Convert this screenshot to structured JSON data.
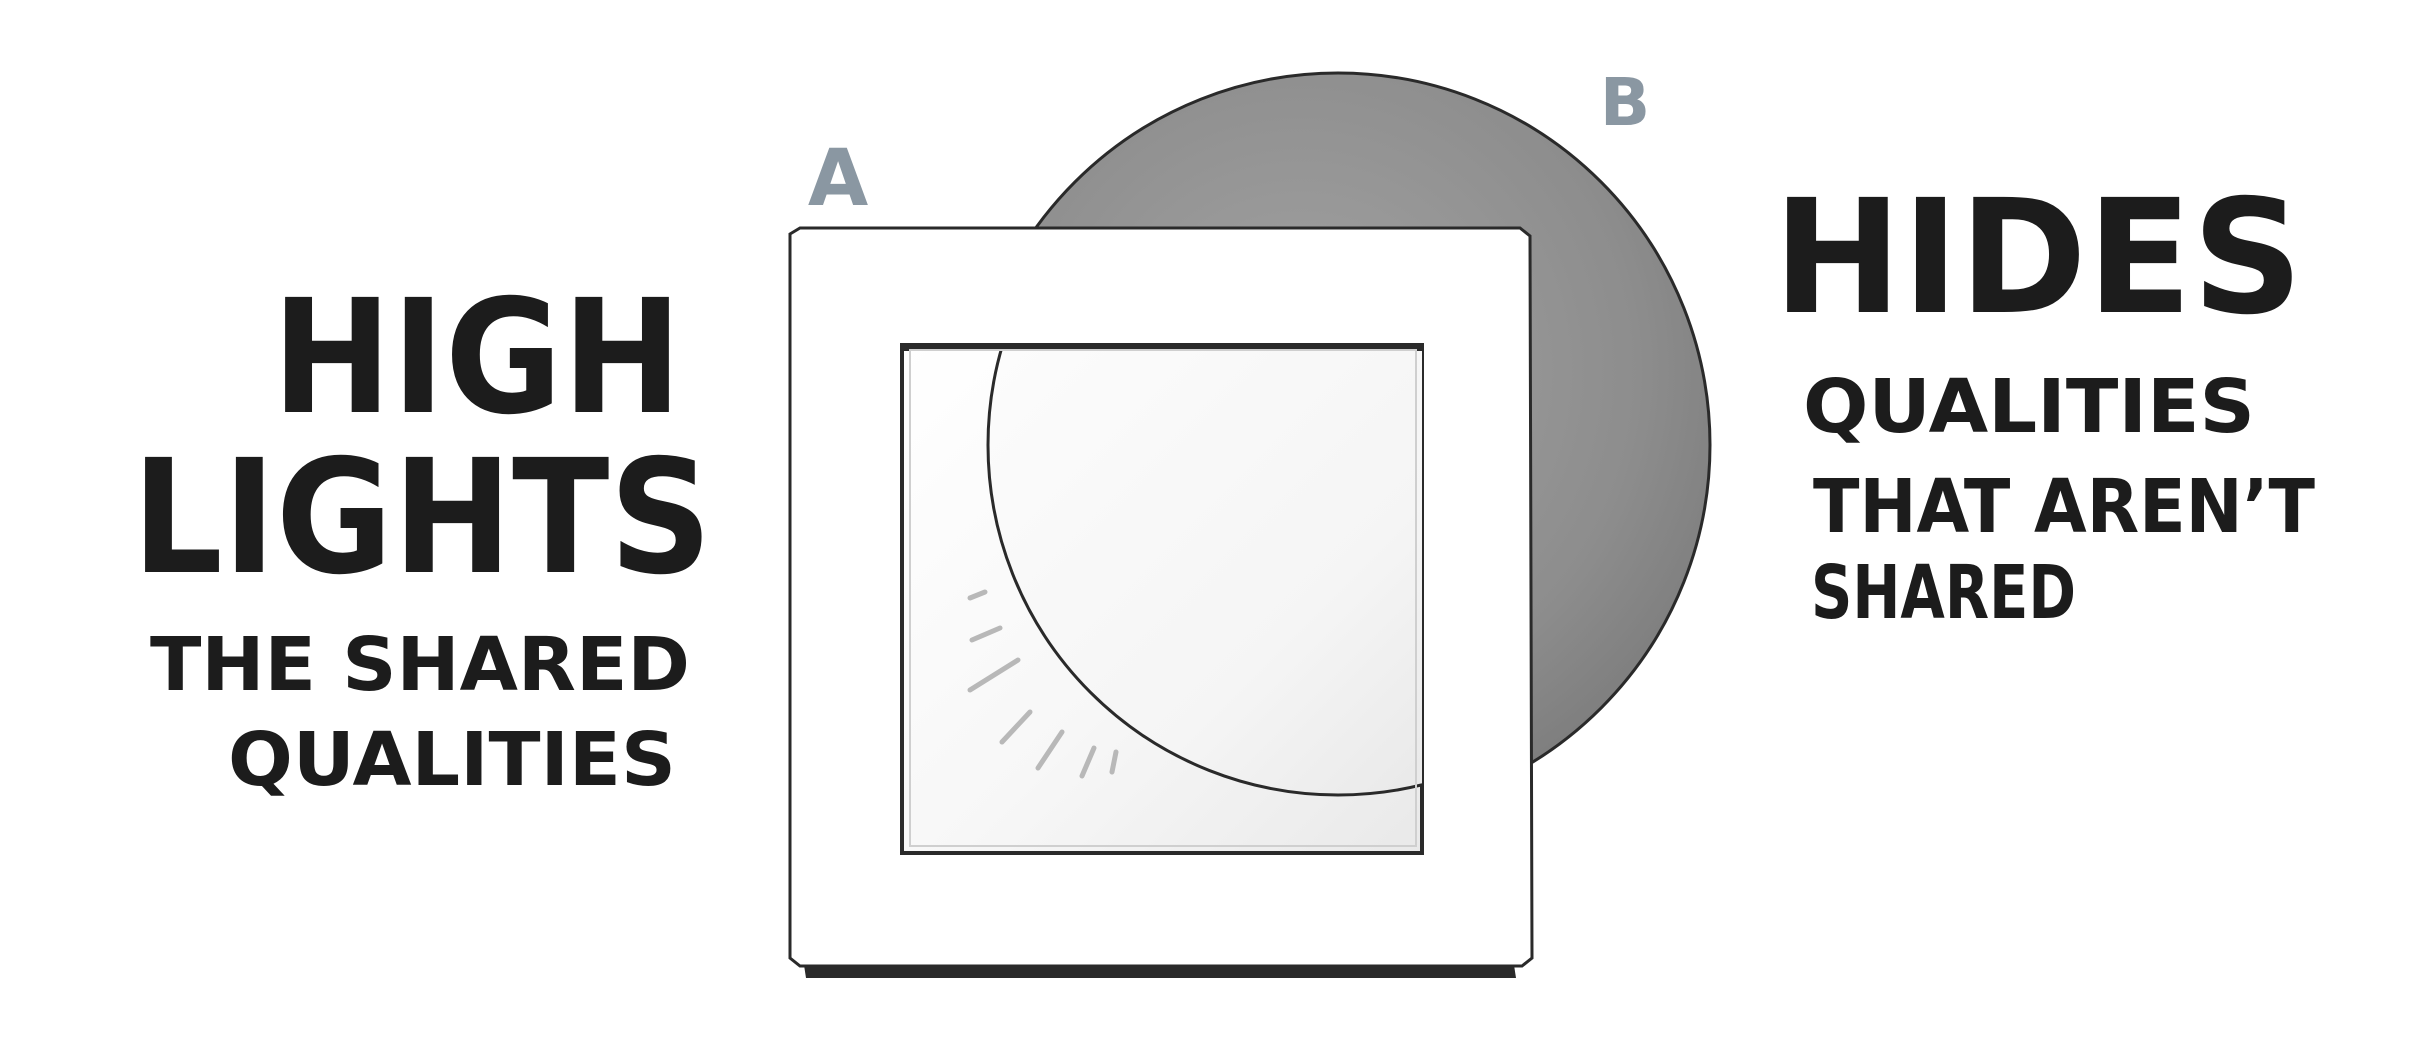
{
  "labels": {
    "a": "A",
    "b": "B"
  },
  "left_text": {
    "line1": "HIGH",
    "line2": "LIGHTS",
    "line3": "THE SHARED",
    "line4": "QUALITIES"
  },
  "right_text": {
    "line1": "HIDES",
    "line2": "QUALITIES",
    "line3": "THAT AREN’T",
    "line4": "SHARED"
  },
  "colors": {
    "ink": "#1c1c1c",
    "label_gray": "#8a97a2",
    "disc_gray": "#8f8f8f",
    "frame_white": "#ffffff"
  }
}
